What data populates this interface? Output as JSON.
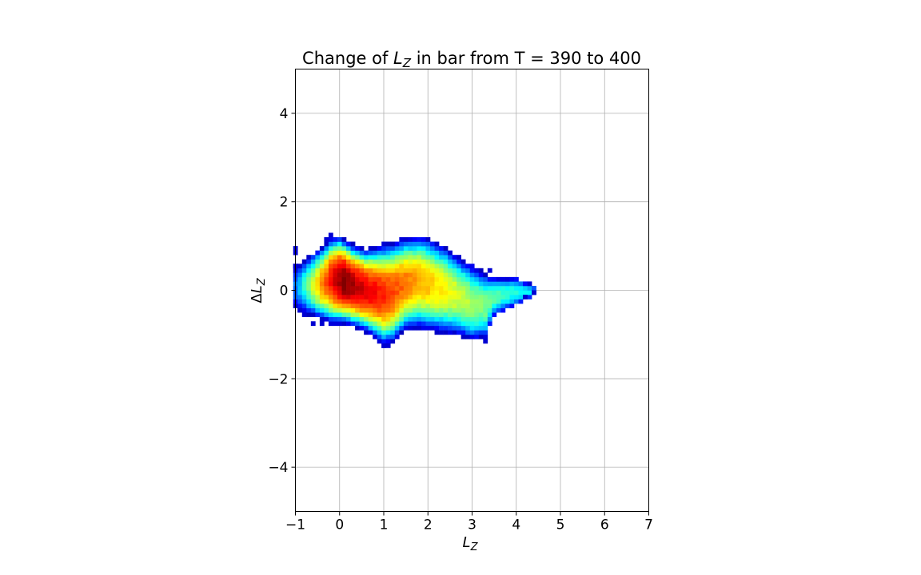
{
  "chart_data": {
    "type": "heatmap",
    "title": {
      "prefix": "Change of ",
      "var": "L",
      "var_sub": "Z",
      "suffix": " in bar from T = 390 to 400"
    },
    "xlabel": {
      "var": "L",
      "sub": "Z"
    },
    "ylabel": {
      "prefix": "Δ",
      "var": "L",
      "sub": "Z"
    },
    "xlim": [
      -1,
      7
    ],
    "ylim": [
      -5,
      5
    ],
    "xticks": [
      -1,
      0,
      1,
      2,
      3,
      4,
      5,
      6,
      7
    ],
    "yticks": [
      -4,
      -2,
      0,
      2,
      4
    ],
    "xtick_labels": [
      "−1",
      "0",
      "1",
      "2",
      "3",
      "4",
      "5",
      "6",
      "7"
    ],
    "ytick_labels": [
      "−4",
      "−2",
      "0",
      "2",
      "4"
    ],
    "grid": true,
    "colormap": "jet",
    "bin_size": {
      "x": 0.1,
      "y": 0.1
    },
    "density_core": {
      "peak": [
        0.1,
        0.0
      ],
      "x_range": [
        -1.0,
        4.4
      ],
      "upper_edge": [
        [
          -1.0,
          0.55
        ],
        [
          -0.6,
          0.85
        ],
        [
          -0.4,
          1.0
        ],
        [
          -0.2,
          1.2
        ],
        [
          0.0,
          1.25
        ],
        [
          0.3,
          1.05
        ],
        [
          0.6,
          0.95
        ],
        [
          1.0,
          1.05
        ],
        [
          1.5,
          1.2
        ],
        [
          1.8,
          1.25
        ],
        [
          2.0,
          1.2
        ],
        [
          2.4,
          1.0
        ],
        [
          2.8,
          0.7
        ],
        [
          3.2,
          0.45
        ],
        [
          3.5,
          0.3
        ],
        [
          4.0,
          0.3
        ],
        [
          4.4,
          0.1
        ]
      ],
      "lower_edge": [
        [
          -1.0,
          -0.4
        ],
        [
          -0.6,
          -0.6
        ],
        [
          -0.2,
          -0.75
        ],
        [
          0.2,
          -0.8
        ],
        [
          0.6,
          -0.95
        ],
        [
          1.0,
          -1.25
        ],
        [
          1.2,
          -1.2
        ],
        [
          1.5,
          -0.9
        ],
        [
          1.8,
          -0.85
        ],
        [
          2.2,
          -0.95
        ],
        [
          2.6,
          -1.0
        ],
        [
          3.0,
          -1.15
        ],
        [
          3.3,
          -1.1
        ],
        [
          3.5,
          -0.6
        ],
        [
          4.0,
          -0.35
        ],
        [
          4.4,
          -0.15
        ]
      ]
    },
    "outlier_cells": [
      [
        -1.0,
        0.95
      ],
      [
        -1.0,
        0.85
      ],
      [
        -1.0,
        0.55
      ],
      [
        -0.9,
        -0.45
      ],
      [
        -0.8,
        -0.55
      ],
      [
        -0.6,
        -0.75
      ],
      [
        -0.4,
        -0.75
      ],
      [
        -0.3,
        1.15
      ],
      [
        -0.2,
        1.25
      ],
      [
        1.0,
        -1.25
      ],
      [
        1.1,
        -1.25
      ],
      [
        3.3,
        -1.15
      ],
      [
        3.4,
        0.45
      ],
      [
        4.2,
        -0.15
      ],
      [
        4.4,
        -0.05
      ],
      [
        4.3,
        0.15
      ]
    ]
  }
}
